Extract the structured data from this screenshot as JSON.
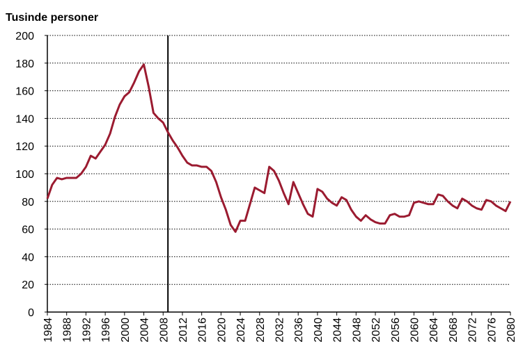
{
  "chart_data": {
    "type": "line",
    "title": "Tusinde personer",
    "x": [
      1984,
      1985,
      1986,
      1987,
      1988,
      1989,
      1990,
      1991,
      1992,
      1993,
      1994,
      1995,
      1996,
      1997,
      1998,
      1999,
      2000,
      2001,
      2002,
      2003,
      2004,
      2005,
      2006,
      2007,
      2008,
      2009,
      2010,
      2011,
      2012,
      2013,
      2014,
      2015,
      2016,
      2017,
      2018,
      2019,
      2020,
      2021,
      2022,
      2023,
      2024,
      2025,
      2026,
      2027,
      2028,
      2029,
      2030,
      2031,
      2032,
      2033,
      2034,
      2035,
      2036,
      2037,
      2038,
      2039,
      2040,
      2041,
      2042,
      2043,
      2044,
      2045,
      2046,
      2047,
      2048,
      2049,
      2050,
      2051,
      2052,
      2053,
      2054,
      2055,
      2056,
      2057,
      2058,
      2059,
      2060,
      2061,
      2062,
      2063,
      2064,
      2065,
      2066,
      2067,
      2068,
      2069,
      2070,
      2071,
      2072,
      2073,
      2074,
      2075,
      2076,
      2077,
      2078,
      2079,
      2080
    ],
    "values": [
      82,
      92,
      97,
      96,
      97,
      97,
      97,
      100,
      105,
      113,
      111,
      116,
      121,
      129,
      141,
      150,
      156,
      159,
      166,
      174,
      179,
      163,
      144,
      140,
      137,
      130,
      124,
      119,
      113,
      108,
      106,
      106,
      105,
      105,
      102,
      94,
      83,
      74,
      63,
      58,
      66,
      66,
      78,
      90,
      88,
      86,
      105,
      102,
      95,
      86,
      78,
      94,
      86,
      78,
      71,
      69,
      89,
      87,
      82,
      79,
      77,
      83,
      81,
      74,
      69,
      66,
      70,
      67,
      65,
      64,
      64,
      70,
      71,
      69,
      69,
      70,
      79,
      80,
      79,
      78,
      78,
      85,
      84,
      80,
      77,
      75,
      82,
      80,
      77,
      75,
      74,
      81,
      80,
      77,
      75,
      73,
      80
    ],
    "color": "#9b1b30",
    "xlim": [
      1984,
      2080
    ],
    "xticks": [
      1984,
      1988,
      1992,
      1996,
      2000,
      2004,
      2008,
      2012,
      2016,
      2020,
      2024,
      2028,
      2032,
      2036,
      2040,
      2044,
      2048,
      2052,
      2056,
      2060,
      2064,
      2068,
      2072,
      2076,
      2080
    ],
    "ylim": [
      0,
      200
    ],
    "yticks": [
      0,
      20,
      40,
      60,
      80,
      100,
      120,
      140,
      160,
      180,
      200
    ],
    "vline": 2009,
    "grid": true
  }
}
